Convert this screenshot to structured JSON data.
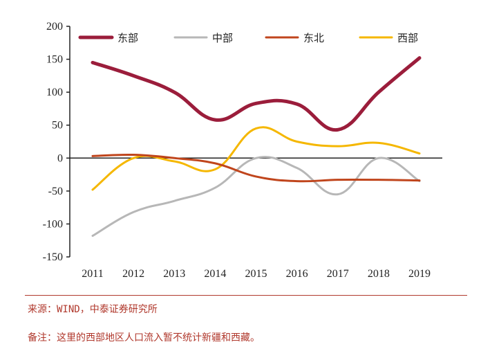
{
  "chart_data": {
    "type": "line",
    "categories": [
      "2011",
      "2012",
      "2013",
      "2014",
      "2015",
      "2016",
      "2017",
      "2018",
      "2019"
    ],
    "ylim": [
      -150,
      200
    ],
    "yticks": [
      200,
      150,
      100,
      50,
      0,
      -50,
      -100,
      -150
    ],
    "legend_position": "top",
    "series": [
      {
        "name": "东部",
        "color": "#9b1d3b",
        "width": 5,
        "values": [
          145,
          125,
          100,
          58,
          83,
          82,
          43,
          100,
          152
        ]
      },
      {
        "name": "中部",
        "color": "#b7b7b7",
        "width": 3,
        "values": [
          -118,
          -82,
          -65,
          -45,
          0,
          -15,
          -55,
          0,
          -35
        ]
      },
      {
        "name": "东北",
        "color": "#c0451c",
        "width": 3,
        "values": [
          3,
          5,
          0,
          -8,
          -28,
          -35,
          -33,
          -33,
          -34
        ]
      },
      {
        "name": "西部",
        "color": "#f5b700",
        "width": 3,
        "values": [
          -48,
          0,
          -5,
          -17,
          45,
          25,
          18,
          23,
          7
        ]
      }
    ]
  },
  "source_note": "来源：WIND，中泰证券研究所",
  "footnote": "备注：这里的西部地区人口流入暂不统计新疆和西藏。"
}
